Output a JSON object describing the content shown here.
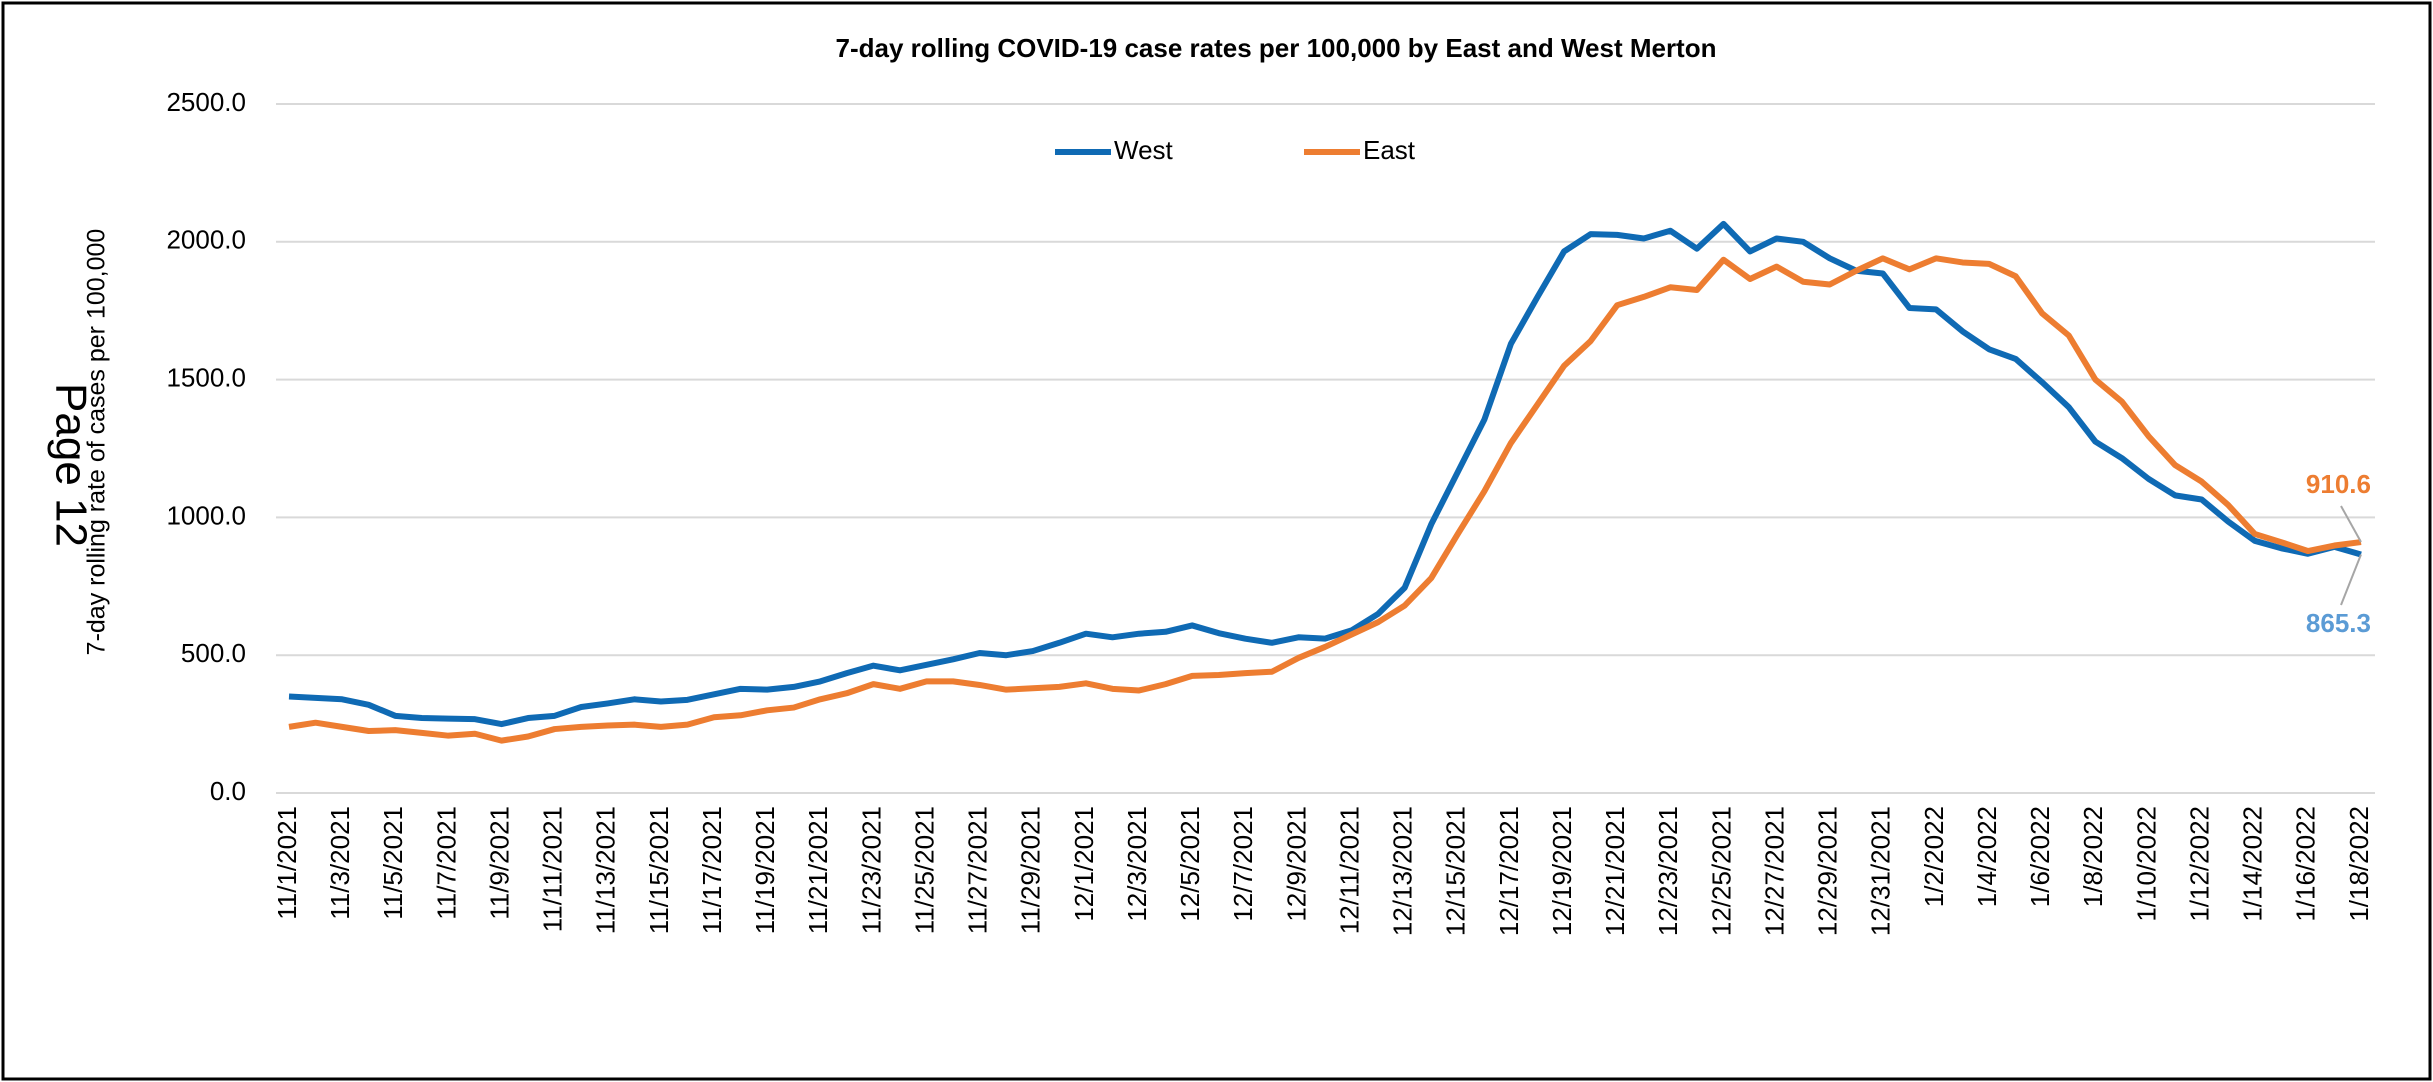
{
  "chart_data": {
    "type": "line",
    "title": "7-day rolling COVID-19 case rates per 100,000 by East and West Merton",
    "y_label": "7-day rolling rate of cases per 100,000",
    "page_label": "Page 12",
    "categories": [
      "11/1/2021",
      null,
      "11/3/2021",
      null,
      "11/5/2021",
      null,
      "11/7/2021",
      null,
      "11/9/2021",
      null,
      "11/11/2021",
      null,
      "11/13/2021",
      null,
      "11/15/2021",
      null,
      "11/17/2021",
      null,
      "11/19/2021",
      null,
      "11/21/2021",
      null,
      "11/23/2021",
      null,
      "11/25/2021",
      null,
      "11/27/2021",
      null,
      "11/29/2021",
      null,
      "12/1/2021",
      null,
      "12/3/2021",
      null,
      "12/5/2021",
      null,
      "12/7/2021",
      null,
      "12/9/2021",
      null,
      "12/11/2021",
      null,
      "12/13/2021",
      null,
      "12/15/2021",
      null,
      "12/17/2021",
      null,
      "12/19/2021",
      null,
      "12/21/2021",
      null,
      "12/23/2021",
      null,
      "12/25/2021",
      null,
      "12/27/2021",
      null,
      "12/29/2021",
      null,
      "12/31/2021",
      null,
      "1/2/2022",
      null,
      "1/4/2022",
      null,
      "1/6/2022",
      null,
      "1/8/2022",
      null,
      "1/10/2022",
      null,
      "1/12/2022",
      null,
      "1/14/2022",
      null,
      "1/16/2022",
      null,
      "1/18/2022"
    ],
    "series": [
      {
        "name": "West",
        "color": "#0f6ab4",
        "label_color": "#5b9bd5",
        "values": [
          350,
          345,
          340,
          320,
          280,
          272,
          270,
          268,
          250,
          272,
          280,
          312,
          325,
          340,
          332,
          338,
          358,
          378,
          375,
          385,
          405,
          435,
          462,
          445,
          465,
          485,
          508,
          500,
          515,
          545,
          578,
          565,
          578,
          585,
          608,
          580,
          560,
          545,
          565,
          560,
          590,
          650,
          745,
          975,
          1165,
          1355,
          1630,
          1800,
          1965,
          2028,
          2025,
          2012,
          2040,
          1975,
          2065,
          1965,
          2012,
          2000,
          1940,
          1895,
          1885,
          1760,
          1755,
          1675,
          1610,
          1575,
          1490,
          1400,
          1275,
          1215,
          1140,
          1080,
          1065,
          985,
          915,
          888,
          868,
          893,
          865.3
        ]
      },
      {
        "name": "East",
        "color": "#ed7d31",
        "label_color": "#ed7d31",
        "values": [
          240,
          255,
          240,
          225,
          228,
          218,
          208,
          215,
          190,
          205,
          232,
          240,
          245,
          248,
          240,
          248,
          275,
          282,
          300,
          310,
          340,
          362,
          395,
          378,
          405,
          405,
          392,
          375,
          380,
          385,
          398,
          378,
          372,
          395,
          425,
          428,
          435,
          440,
          490,
          530,
          575,
          620,
          680,
          780,
          940,
          1095,
          1270,
          1410,
          1550,
          1640,
          1770,
          1800,
          1835,
          1825,
          1935,
          1865,
          1910,
          1855,
          1845,
          1895,
          1940,
          1900,
          1940,
          1925,
          1920,
          1875,
          1740,
          1660,
          1500,
          1420,
          1295,
          1190,
          1130,
          1045,
          940,
          910,
          878,
          898,
          910.6
        ]
      }
    ],
    "ylim": [
      0,
      2500
    ],
    "yticks": [
      {
        "value": 0,
        "label": "0.0"
      },
      {
        "value": 500,
        "label": "500.0"
      },
      {
        "value": 1000,
        "label": "1000.0"
      },
      {
        "value": 1500,
        "label": "1500.0"
      },
      {
        "value": 2000,
        "label": "2000.0"
      },
      {
        "value": 2500,
        "label": "2500.0"
      }
    ],
    "grid": true,
    "legend": "top"
  }
}
